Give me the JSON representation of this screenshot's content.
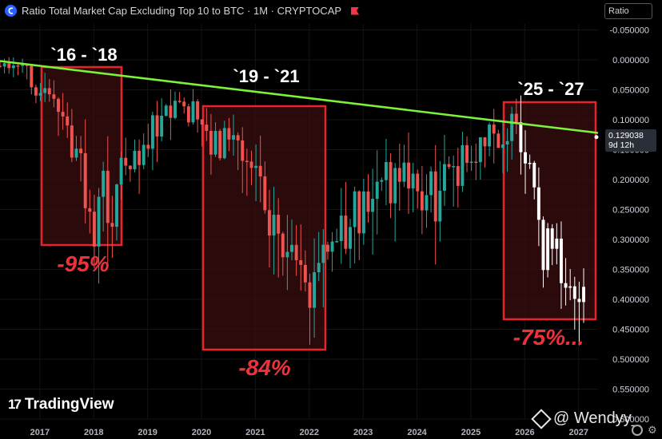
{
  "header": {
    "title": "Ratio Total Market Cap Excluding Top 10 to BTC · 1M · CRYPTOCAP"
  },
  "scale_box": {
    "label": "Ratio"
  },
  "price_tag": {
    "value": "0.129038",
    "countdown": "9d 12h"
  },
  "branding": {
    "tradingview": "TradingView",
    "watermark": "@ Wendyy_"
  },
  "colors": {
    "up": "#26a69a",
    "down": "#ef5350",
    "current": "#ffffff",
    "trendline": "#7cf23a",
    "box": "#e8242b",
    "box_fill": "#3a0d10",
    "label_red": "#f0303a"
  },
  "chart_data": {
    "type": "candlestick",
    "title": "Ratio Total Market Cap Excluding Top 10 to BTC",
    "interval": "1M",
    "source": "CRYPTOCAP",
    "y_axis": {
      "inverted": true,
      "range": [
        -0.06,
        0.6
      ],
      "ticks": [
        "-0.050000",
        "0.000000",
        "0.050000",
        "0.100000",
        "0.150000",
        "0.200000",
        "0.250000",
        "0.300000",
        "0.350000",
        "0.400000",
        "0.450000",
        "0.500000",
        "0.550000",
        "0.600000"
      ]
    },
    "x_axis": {
      "range": [
        2016.3,
        2027.4
      ],
      "ticks": [
        "2017",
        "2018",
        "2019",
        "2020",
        "2021",
        "2022",
        "2023",
        "2024",
        "2025",
        "2026",
        "2027"
      ]
    },
    "current_value": 0.129038,
    "trendline": {
      "points": [
        [
          2016.3,
          0.002
        ],
        [
          2027.4,
          0.122
        ]
      ]
    },
    "cycles": [
      {
        "label": "`16 - `18",
        "start": 2016.95,
        "end": 2018.55,
        "drawdown": "-95%"
      },
      {
        "label": "`19 - `21",
        "start": 2019.95,
        "end": 2022.2,
        "drawdown": "-84%"
      },
      {
        "label": "`25 - `27",
        "start": 2025.5,
        "end": 2027.2,
        "drawdown": "-75%..."
      }
    ],
    "anchors": [
      [
        2016.3,
        0.01
      ],
      [
        2016.9,
        0.02
      ],
      [
        2017.1,
        0.05
      ],
      [
        2017.3,
        0.07
      ],
      [
        2017.5,
        0.1
      ],
      [
        2017.7,
        0.14
      ],
      [
        2017.9,
        0.2
      ],
      [
        2018.0,
        0.25
      ],
      [
        2018.15,
        0.28
      ],
      [
        2018.3,
        0.22
      ],
      [
        2018.45,
        0.25
      ],
      [
        2018.6,
        0.18
      ],
      [
        2018.8,
        0.15
      ],
      [
        2019.0,
        0.14
      ],
      [
        2019.25,
        0.12
      ],
      [
        2019.5,
        0.1
      ],
      [
        2019.7,
        0.08
      ],
      [
        2019.9,
        0.09
      ],
      [
        2020.1,
        0.11
      ],
      [
        2020.3,
        0.13
      ],
      [
        2020.5,
        0.14
      ],
      [
        2020.7,
        0.12
      ],
      [
        2020.9,
        0.16
      ],
      [
        2021.1,
        0.15
      ],
      [
        2021.3,
        0.22
      ],
      [
        2021.5,
        0.28
      ],
      [
        2021.7,
        0.32
      ],
      [
        2021.9,
        0.37
      ],
      [
        2022.05,
        0.42
      ],
      [
        2022.2,
        0.38
      ],
      [
        2022.4,
        0.32
      ],
      [
        2022.6,
        0.3
      ],
      [
        2022.8,
        0.31
      ],
      [
        2023.0,
        0.26
      ],
      [
        2023.3,
        0.22
      ],
      [
        2023.6,
        0.2
      ],
      [
        2023.9,
        0.19
      ],
      [
        2024.2,
        0.22
      ],
      [
        2024.5,
        0.23
      ],
      [
        2024.8,
        0.19
      ],
      [
        2025.1,
        0.17
      ],
      [
        2025.3,
        0.16
      ],
      [
        2025.5,
        0.13
      ],
      [
        2025.7,
        0.12
      ],
      [
        2025.9,
        0.12
      ],
      [
        2026.0,
        0.14
      ],
      [
        2026.1,
        0.2
      ],
      [
        2026.3,
        0.23
      ],
      [
        2026.5,
        0.32
      ],
      [
        2026.7,
        0.34
      ],
      [
        2026.9,
        0.34
      ],
      [
        2027.05,
        0.37
      ],
      [
        2027.15,
        0.42
      ]
    ]
  }
}
